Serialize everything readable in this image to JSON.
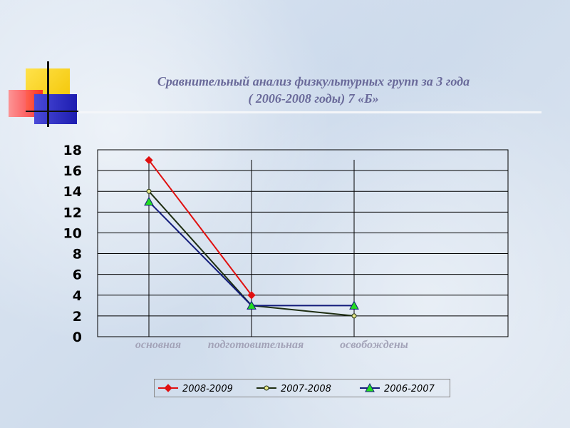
{
  "title_line1": "Сравнительный анализ физкультурных групп за 3 года",
  "title_line2": "( 2006-2008 годы) 7 «Б»",
  "colors": {
    "title": "#6a6a9a",
    "category_label": "#a3a3b8"
  },
  "chart_data": {
    "type": "line",
    "categories": [
      "основная",
      "подготовительная",
      "освобождены"
    ],
    "series": [
      {
        "name": "2008-2009",
        "values": [
          17,
          4,
          null
        ],
        "color": "#e01010",
        "marker": "diamond"
      },
      {
        "name": "2007-2008",
        "values": [
          14,
          3,
          2
        ],
        "color": "#1e2e12",
        "marker": "circle",
        "marker_fill": "#e8e88a"
      },
      {
        "name": "2006-2007",
        "values": [
          13,
          3,
          3
        ],
        "color": "#111a7a",
        "marker": "triangle",
        "marker_fill": "#22dd22"
      }
    ],
    "ylim": [
      0,
      18
    ],
    "yticks": [
      "0",
      "2",
      "4",
      "6",
      "8",
      "10",
      "12",
      "14",
      "16",
      "18"
    ],
    "grid": true,
    "legend_position": "bottom"
  }
}
